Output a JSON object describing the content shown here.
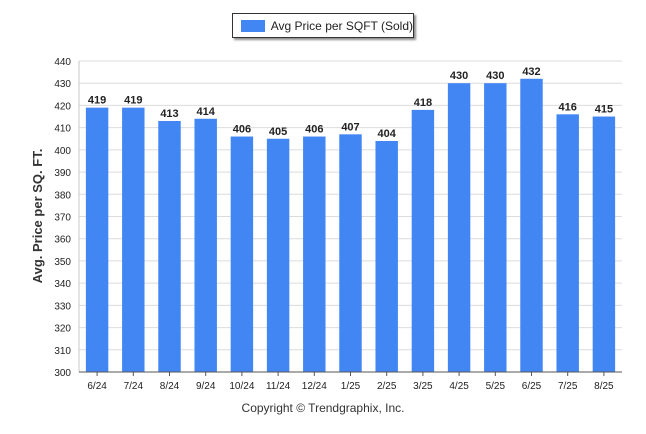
{
  "legend": {
    "label": "Avg Price per SQFT (Sold)"
  },
  "footer": {
    "copyright": "Copyright © Trendgraphix, Inc."
  },
  "colors": {
    "bar": "#4286f4",
    "grid": "#dcdcdc",
    "axis": "#555555",
    "text": "#222222"
  },
  "chart_data": {
    "type": "bar",
    "title": "",
    "xlabel": "",
    "ylabel": "Avg. Price per SQ. FT.",
    "categories": [
      "6/24",
      "7/24",
      "8/24",
      "9/24",
      "10/24",
      "11/24",
      "12/24",
      "1/25",
      "2/25",
      "3/25",
      "4/25",
      "5/25",
      "6/25",
      "7/25",
      "8/25"
    ],
    "series": [
      {
        "name": "Avg Price per SQFT (Sold)",
        "values": [
          419,
          419,
          413,
          414,
          406,
          405,
          406,
          407,
          404,
          418,
          430,
          430,
          432,
          416,
          415
        ]
      }
    ],
    "ylim": [
      300,
      440
    ],
    "yticks": [
      300,
      310,
      320,
      330,
      340,
      350,
      360,
      370,
      380,
      390,
      400,
      410,
      420,
      430,
      440
    ],
    "grid": true,
    "data_labels": true,
    "legend_position": "top-center"
  }
}
